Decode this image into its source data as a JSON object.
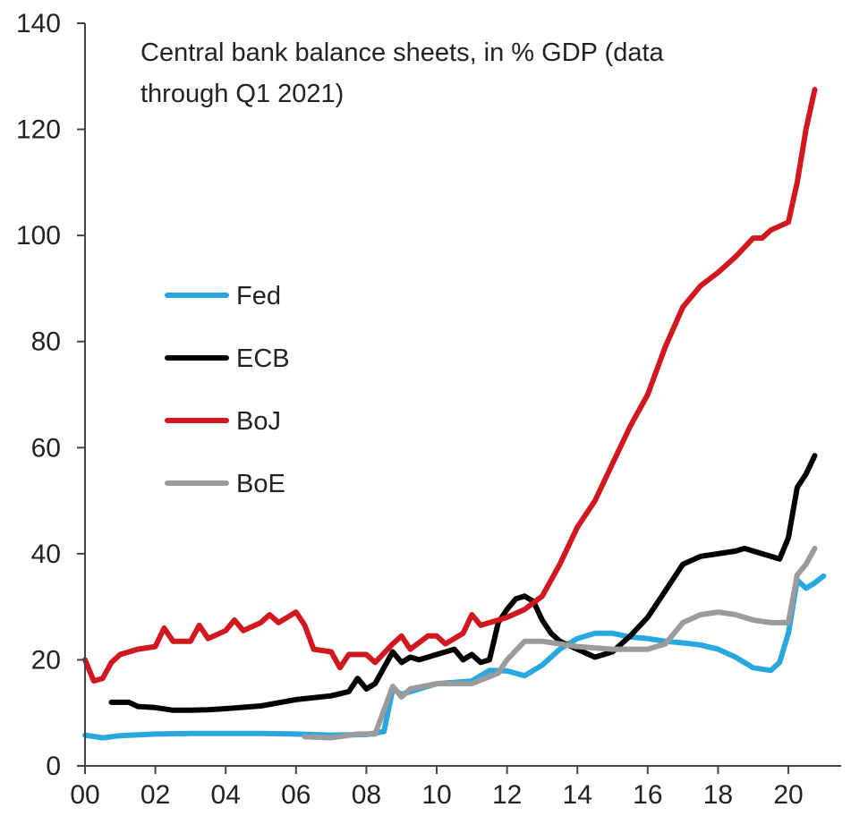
{
  "chart_data": {
    "type": "line",
    "title": "Central bank balance sheets, in % GDP (data through Q1 2021)",
    "title_lines": [
      "Central bank balance sheets, in % GDP (data",
      "through Q1 2021)"
    ],
    "xlabel": "",
    "ylabel": "",
    "xlim": [
      2000,
      2021.5
    ],
    "ylim": [
      0,
      140
    ],
    "x_ticks": [
      2000,
      2002,
      2004,
      2006,
      2008,
      2010,
      2012,
      2014,
      2016,
      2018,
      2020
    ],
    "x_tick_labels": [
      "00",
      "02",
      "04",
      "06",
      "08",
      "10",
      "12",
      "14",
      "16",
      "18",
      "20"
    ],
    "y_ticks": [
      0,
      20,
      40,
      60,
      80,
      100,
      120,
      140
    ],
    "y_tick_labels": [
      "0",
      "20",
      "40",
      "60",
      "80",
      "100",
      "120",
      "140"
    ],
    "grid": false,
    "legend_position": "left",
    "series": [
      {
        "name": "Fed",
        "color": "#29a8e0",
        "points": [
          [
            2000,
            5.8
          ],
          [
            2000.5,
            5.3
          ],
          [
            2001,
            5.7
          ],
          [
            2002,
            6.0
          ],
          [
            2003,
            6.1
          ],
          [
            2004,
            6.1
          ],
          [
            2005,
            6.1
          ],
          [
            2006,
            6.0
          ],
          [
            2007,
            5.8
          ],
          [
            2008,
            5.9
          ],
          [
            2008.5,
            6.5
          ],
          [
            2008.75,
            14.5
          ],
          [
            2009,
            13.5
          ],
          [
            2009.5,
            14.5
          ],
          [
            2010,
            15.5
          ],
          [
            2011,
            16.0
          ],
          [
            2011.5,
            18.0
          ],
          [
            2012,
            17.9
          ],
          [
            2012.5,
            17.0
          ],
          [
            2013,
            19.0
          ],
          [
            2013.5,
            22.0
          ],
          [
            2014,
            24.0
          ],
          [
            2014.5,
            25.0
          ],
          [
            2015,
            25.0
          ],
          [
            2015.5,
            24.3
          ],
          [
            2016,
            24.0
          ],
          [
            2016.5,
            23.5
          ],
          [
            2017,
            23.2
          ],
          [
            2017.5,
            22.8
          ],
          [
            2018,
            22.0
          ],
          [
            2018.5,
            20.5
          ],
          [
            2019,
            18.5
          ],
          [
            2019.5,
            18.0
          ],
          [
            2019.75,
            19.5
          ],
          [
            2020,
            25.0
          ],
          [
            2020.25,
            35.0
          ],
          [
            2020.5,
            33.5
          ],
          [
            2020.75,
            34.5
          ],
          [
            2021,
            35.8
          ]
        ]
      },
      {
        "name": "ECB",
        "color": "#000000",
        "points": [
          [
            2000.75,
            12.0
          ],
          [
            2001.25,
            12.0
          ],
          [
            2001.5,
            11.2
          ],
          [
            2002,
            11.0
          ],
          [
            2002.5,
            10.5
          ],
          [
            2003,
            10.5
          ],
          [
            2003.5,
            10.6
          ],
          [
            2004,
            10.8
          ],
          [
            2005,
            11.3
          ],
          [
            2006,
            12.5
          ],
          [
            2007,
            13.2
          ],
          [
            2007.5,
            14.0
          ],
          [
            2007.75,
            16.5
          ],
          [
            2008,
            14.5
          ],
          [
            2008.25,
            15.5
          ],
          [
            2008.75,
            21.5
          ],
          [
            2009,
            19.5
          ],
          [
            2009.25,
            20.5
          ],
          [
            2009.5,
            20.0
          ],
          [
            2010,
            21.0
          ],
          [
            2010.5,
            22.0
          ],
          [
            2010.75,
            20.0
          ],
          [
            2011,
            21.0
          ],
          [
            2011.25,
            19.5
          ],
          [
            2011.5,
            20.0
          ],
          [
            2011.75,
            27.0
          ],
          [
            2012,
            29.5
          ],
          [
            2012.25,
            31.5
          ],
          [
            2012.5,
            32.0
          ],
          [
            2012.75,
            31.0
          ],
          [
            2013,
            27.5
          ],
          [
            2013.25,
            25.0
          ],
          [
            2013.5,
            23.5
          ],
          [
            2014,
            22.0
          ],
          [
            2014.5,
            20.5
          ],
          [
            2015,
            21.5
          ],
          [
            2015.5,
            24.5
          ],
          [
            2016,
            28.0
          ],
          [
            2016.5,
            33.0
          ],
          [
            2017,
            38.0
          ],
          [
            2017.5,
            39.5
          ],
          [
            2018,
            40.0
          ],
          [
            2018.5,
            40.5
          ],
          [
            2018.75,
            41.0
          ],
          [
            2019,
            40.5
          ],
          [
            2019.5,
            39.5
          ],
          [
            2019.75,
            39.0
          ],
          [
            2020,
            43.0
          ],
          [
            2020.25,
            52.5
          ],
          [
            2020.5,
            55.0
          ],
          [
            2020.75,
            58.5
          ]
        ]
      },
      {
        "name": "BoJ",
        "color": "#d0181e",
        "points": [
          [
            2000,
            20.0
          ],
          [
            2000.25,
            16.0
          ],
          [
            2000.5,
            16.5
          ],
          [
            2000.75,
            19.5
          ],
          [
            2001,
            21.0
          ],
          [
            2001.5,
            22.0
          ],
          [
            2002,
            22.5
          ],
          [
            2002.25,
            26.0
          ],
          [
            2002.5,
            23.5
          ],
          [
            2003,
            23.5
          ],
          [
            2003.25,
            26.5
          ],
          [
            2003.5,
            24.0
          ],
          [
            2004,
            25.5
          ],
          [
            2004.25,
            27.5
          ],
          [
            2004.5,
            25.5
          ],
          [
            2005,
            27.0
          ],
          [
            2005.25,
            28.5
          ],
          [
            2005.5,
            27.0
          ],
          [
            2006,
            29.0
          ],
          [
            2006.25,
            26.5
          ],
          [
            2006.5,
            22.0
          ],
          [
            2007,
            21.5
          ],
          [
            2007.25,
            18.5
          ],
          [
            2007.5,
            21.0
          ],
          [
            2008,
            21.0
          ],
          [
            2008.25,
            19.5
          ],
          [
            2008.75,
            23.0
          ],
          [
            2009,
            24.5
          ],
          [
            2009.25,
            22.0
          ],
          [
            2009.75,
            24.5
          ],
          [
            2010,
            24.5
          ],
          [
            2010.25,
            23.0
          ],
          [
            2010.75,
            25.0
          ],
          [
            2011,
            28.5
          ],
          [
            2011.25,
            26.5
          ],
          [
            2011.75,
            27.5
          ],
          [
            2012,
            28.0
          ],
          [
            2012.5,
            29.5
          ],
          [
            2013,
            32.0
          ],
          [
            2013.5,
            38.0
          ],
          [
            2014,
            45.0
          ],
          [
            2014.5,
            50.0
          ],
          [
            2015,
            57.0
          ],
          [
            2015.5,
            64.0
          ],
          [
            2016,
            70.0
          ],
          [
            2016.5,
            79.0
          ],
          [
            2017,
            86.5
          ],
          [
            2017.5,
            90.5
          ],
          [
            2018,
            93.0
          ],
          [
            2018.5,
            96.0
          ],
          [
            2019,
            99.5
          ],
          [
            2019.25,
            99.5
          ],
          [
            2019.5,
            101.0
          ],
          [
            2020,
            102.5
          ],
          [
            2020.25,
            110.0
          ],
          [
            2020.5,
            120.0
          ],
          [
            2020.75,
            127.5
          ]
        ]
      },
      {
        "name": "BoE",
        "color": "#9b9b9b",
        "points": [
          [
            2006.25,
            5.5
          ],
          [
            2007,
            5.3
          ],
          [
            2007.75,
            6.0
          ],
          [
            2008.25,
            6.0
          ],
          [
            2008.75,
            15.0
          ],
          [
            2009,
            13.0
          ],
          [
            2009.25,
            14.5
          ],
          [
            2010,
            15.5
          ],
          [
            2011,
            15.5
          ],
          [
            2011.75,
            17.5
          ],
          [
            2012,
            20.0
          ],
          [
            2012.5,
            23.5
          ],
          [
            2013,
            23.5
          ],
          [
            2014,
            22.5
          ],
          [
            2015,
            22.0
          ],
          [
            2016,
            22.0
          ],
          [
            2016.5,
            23.0
          ],
          [
            2017,
            27.0
          ],
          [
            2017.5,
            28.5
          ],
          [
            2018,
            29.0
          ],
          [
            2018.5,
            28.5
          ],
          [
            2019,
            27.5
          ],
          [
            2019.5,
            27.0
          ],
          [
            2020,
            27.0
          ],
          [
            2020.25,
            36.0
          ],
          [
            2020.5,
            38.0
          ],
          [
            2020.75,
            41.0
          ]
        ]
      }
    ]
  }
}
